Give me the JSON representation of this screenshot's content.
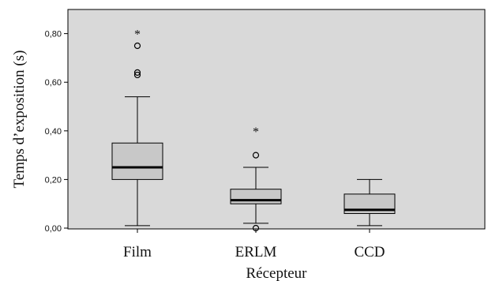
{
  "chart_data": {
    "type": "boxplot",
    "xlabel": "Récepteur",
    "ylabel": "Temps d’exposition (s)",
    "ylim": [
      0,
      0.85
    ],
    "yticks": [
      {
        "value": 0.0,
        "label": "0,00"
      },
      {
        "value": 0.2,
        "label": "0,20"
      },
      {
        "value": 0.4,
        "label": "0,40"
      },
      {
        "value": 0.6,
        "label": "0,60"
      },
      {
        "value": 0.8,
        "label": "0,80"
      }
    ],
    "categories": [
      "Film",
      "ERLM",
      "CCD"
    ],
    "boxes": [
      {
        "category": "Film",
        "min": 0.01,
        "q1": 0.2,
        "median": 0.25,
        "q3": 0.35,
        "max": 0.54,
        "outliers": [
          0.63,
          0.64,
          0.75
        ],
        "extremes": [
          0.8
        ]
      },
      {
        "category": "ERLM",
        "min": 0.02,
        "q1": 0.1,
        "median": 0.115,
        "q3": 0.16,
        "max": 0.25,
        "outliers": [
          0.0,
          0.3
        ],
        "extremes": [
          0.4
        ]
      },
      {
        "category": "CCD",
        "min": 0.01,
        "q1": 0.06,
        "median": 0.075,
        "q3": 0.14,
        "max": 0.2,
        "outliers": [],
        "extremes": []
      }
    ],
    "colors": {
      "plot_bg": "#d9d9d9",
      "box_fill": "#c8c8c8",
      "stroke": "#000000"
    },
    "grid": false,
    "legend": "none"
  }
}
